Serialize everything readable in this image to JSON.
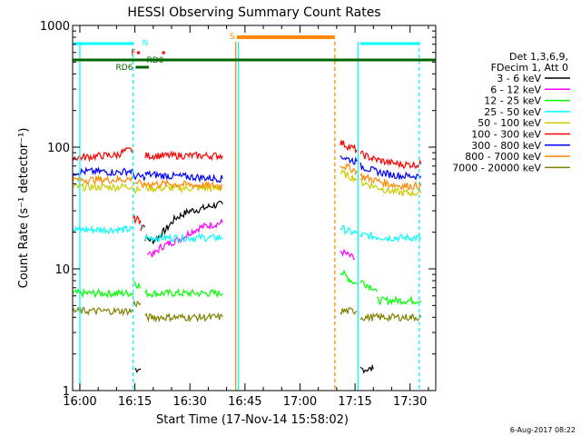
{
  "chart_data": {
    "type": "line",
    "title": "HESSI Observing Summary Count Rates",
    "xlabel": "Start Time (17-Nov-14 15:58:02)",
    "ylabel": "Count Rate (s⁻¹ detector⁻¹)",
    "x_ticks": [
      "16:00",
      "16:15",
      "16:30",
      "16:45",
      "17:00",
      "17:15",
      "17:30"
    ],
    "x_tick_minutes": [
      0,
      15,
      30,
      45,
      60,
      75,
      90
    ],
    "xlim_minutes": [
      -1.97,
      97
    ],
    "y_ticks": [
      "1",
      "10",
      "100",
      "1000"
    ],
    "y_tick_values": [
      1,
      10,
      100,
      1000
    ],
    "ylim": [
      1,
      1000
    ],
    "y_scale": "log",
    "legend": {
      "header": [
        "Det 1,3,6,9,",
        "FDecim 1, Att 0"
      ],
      "placement": "right",
      "entries": [
        {
          "label": "3 - 6 keV",
          "color": "#000000"
        },
        {
          "label": "6 - 12 keV",
          "color": "#ff00ff"
        },
        {
          "label": "12 - 25 keV",
          "color": "#00ff00"
        },
        {
          "label": "25 - 50 keV",
          "color": "#00ffff"
        },
        {
          "label": "50 - 100 keV",
          "color": "#cccc00"
        },
        {
          "label": "100 - 300 keV",
          "color": "#ff0000"
        },
        {
          "label": "300 - 800 keV",
          "color": "#0000ff"
        },
        {
          "label": "800 - 7000 keV",
          "color": "#ff8800"
        },
        {
          "label": "7000 - 20000 keV",
          "color": "#808000"
        }
      ]
    },
    "flag_labels": [
      {
        "text": "N",
        "color": "#00ffff"
      },
      {
        "text": "F",
        "color": "#ff0000"
      },
      {
        "text": "RD0",
        "color": "#006600"
      },
      {
        "text": "RD6",
        "color": "#006600"
      },
      {
        "text": "S",
        "color": "#ff8800"
      }
    ],
    "footer_timestamp": "6-Aug-2017 08:22",
    "series": [
      {
        "name": "3 - 6 keV",
        "color": "#000000",
        "segments": [
          {
            "x": [
              15,
              15.5,
              16,
              16.6
            ],
            "y": [
              1.5,
              1.5,
              1.5,
              1.5
            ]
          },
          {
            "x": [
              17.8,
              20,
              22,
              24,
              26,
              28,
              30,
              33,
              36,
              38.9
            ],
            "y": [
              18,
              17,
              19,
              22,
              26,
              28,
              30,
              31,
              33,
              34
            ]
          },
          {
            "x": [
              76.5,
              78,
              80
            ],
            "y": [
              1.5,
              1.5,
              1.5
            ]
          }
        ]
      },
      {
        "name": "6 - 12 keV",
        "color": "#ff00ff",
        "segments": [
          {
            "x": [
              18.5,
              20,
              22,
              24,
              26,
              28,
              30,
              33,
              36,
              38.9
            ],
            "y": [
              14,
              13,
              15,
              16,
              17,
              18,
              20,
              22,
              23,
              24
            ]
          },
          {
            "x": [
              71,
              72,
              73,
              74,
              75
            ],
            "y": [
              14,
              13.5,
              13,
              12.5,
              12
            ]
          }
        ]
      },
      {
        "name": "12 - 25 keV",
        "color": "#00ff00",
        "segments": [
          {
            "x": [
              -2,
              2,
              6,
              10,
              12,
              14.5
            ],
            "y": [
              6.3,
              6.3,
              6.3,
              6.3,
              6.3,
              6.3
            ]
          },
          {
            "x": [
              14.5,
              15.5,
              16.6
            ],
            "y": [
              8,
              7.5,
              7
            ]
          },
          {
            "x": [
              17.8,
              22,
              28,
              34,
              38.9
            ],
            "y": [
              6.3,
              6.3,
              6.3,
              6.3,
              6.3
            ]
          },
          {
            "x": [
              71,
              72,
              74,
              75.5
            ],
            "y": [
              9.5,
              9,
              8,
              7.5
            ]
          },
          {
            "x": [
              76.5,
              78,
              80,
              81
            ],
            "y": [
              8,
              7.5,
              7,
              6.5
            ]
          },
          {
            "x": [
              81,
              84,
              87,
              90,
              93
            ],
            "y": [
              5.5,
              5.5,
              5.5,
              5.5,
              5.5
            ]
          }
        ]
      },
      {
        "name": "25 - 50 keV",
        "color": "#00ffff",
        "segments": [
          {
            "x": [
              -2,
              2,
              6,
              10,
              14.5
            ],
            "y": [
              21,
              21,
              21,
              21,
              21
            ]
          },
          {
            "x": [
              16.6,
              17.8
            ],
            "y": [
              22,
              22
            ]
          },
          {
            "x": [
              17.8,
              20,
              24,
              28,
              32,
              36,
              38.9
            ],
            "y": [
              18,
              18,
              18,
              18,
              18,
              18,
              18
            ]
          },
          {
            "x": [
              71,
              72,
              74,
              75.5
            ],
            "y": [
              22,
              21,
              20,
              19.5
            ]
          },
          {
            "x": [
              76.5,
              80,
              84,
              88,
              93
            ],
            "y": [
              19,
              18.5,
              18,
              18,
              18
            ]
          }
        ]
      },
      {
        "name": "50 - 100 keV",
        "color": "#cccc00",
        "segments": [
          {
            "x": [
              -2,
              2,
              6,
              10,
              14.5
            ],
            "y": [
              47,
              47,
              47,
              47,
              48
            ]
          },
          {
            "x": [
              14.5,
              16.6
            ],
            "y": [
              45,
              45
            ]
          },
          {
            "x": [
              17.8,
              20,
              24,
              28,
              32,
              36,
              38.9
            ],
            "y": [
              46,
              46,
              46,
              46,
              46,
              46,
              46
            ]
          },
          {
            "x": [
              71,
              73,
              75.5
            ],
            "y": [
              62,
              58,
              55
            ]
          },
          {
            "x": [
              76.5,
              80,
              84,
              88,
              93
            ],
            "y": [
              52,
              48,
              44,
              42,
              42
            ]
          }
        ]
      },
      {
        "name": "100 - 300 keV",
        "color": "#ff0000",
        "segments": [
          {
            "x": [
              -2,
              2,
              6,
              10,
              12,
              14.5
            ],
            "y": [
              82,
              83,
              85,
              86,
              92,
              95
            ]
          },
          {
            "x": [
              14.5,
              16.6
            ],
            "y": [
              26,
              25
            ]
          },
          {
            "x": [
              16.6,
              17.8
            ],
            "y": [
              22,
              22
            ]
          },
          {
            "x": [
              17.8,
              24,
              30,
              38.9
            ],
            "y": [
              85,
              85,
              85,
              85
            ]
          },
          {
            "x": [
              71,
              73,
              75.5
            ],
            "y": [
              110,
              102,
              95
            ]
          },
          {
            "x": [
              76.5,
              80,
              84,
              88,
              93
            ],
            "y": [
              88,
              80,
              75,
              72,
              72
            ]
          }
        ]
      },
      {
        "name": "300 - 800 keV",
        "color": "#0000ff",
        "segments": [
          {
            "x": [
              -2,
              2,
              6,
              10,
              14.5
            ],
            "y": [
              62,
              63,
              63,
              62,
              64
            ]
          },
          {
            "x": [
              14.5,
              16.6,
              17.8
            ],
            "y": [
              58,
              57,
              57
            ]
          },
          {
            "x": [
              17.8,
              24,
              30,
              38.9
            ],
            "y": [
              60,
              58,
              57,
              55
            ]
          },
          {
            "x": [
              71,
              73,
              75.5
            ],
            "y": [
              85,
              80,
              76
            ]
          },
          {
            "x": [
              76.5,
              80,
              84,
              88,
              93
            ],
            "y": [
              70,
              64,
              60,
              58,
              58
            ]
          }
        ]
      },
      {
        "name": "800 - 7000 keV",
        "color": "#ff8800",
        "segments": [
          {
            "x": [
              -2,
              2,
              6,
              10,
              14.5
            ],
            "y": [
              54,
              54,
              54,
              54,
              55
            ]
          },
          {
            "x": [
              14.5,
              16.6,
              17.8
            ],
            "y": [
              52,
              50,
              48
            ]
          },
          {
            "x": [
              17.8,
              24,
              30,
              38.9
            ],
            "y": [
              50,
              50,
              49,
              48
            ]
          },
          {
            "x": [
              71,
              73,
              75.5
            ],
            "y": [
              72,
              68,
              64
            ]
          },
          {
            "x": [
              76.5,
              80,
              84,
              88,
              93
            ],
            "y": [
              58,
              54,
              50,
              48,
              48
            ]
          }
        ]
      },
      {
        "name": "7000 - 20000 keV",
        "color": "#808000",
        "segments": [
          {
            "x": [
              -2,
              2,
              6,
              10,
              14.5
            ],
            "y": [
              4.5,
              4.5,
              4.5,
              4.5,
              4.5
            ]
          },
          {
            "x": [
              14.5,
              16.6
            ],
            "y": [
              5.2,
              5.2
            ]
          },
          {
            "x": [
              17.8,
              24,
              30,
              38.9
            ],
            "y": [
              4,
              4,
              4,
              4
            ]
          },
          {
            "x": [
              71,
              73,
              75.5
            ],
            "y": [
              4.5,
              4.5,
              4.5
            ]
          },
          {
            "x": [
              76.5,
              80,
              84,
              88,
              93
            ],
            "y": [
              4,
              4,
              4,
              4,
              4
            ]
          }
        ]
      }
    ]
  }
}
